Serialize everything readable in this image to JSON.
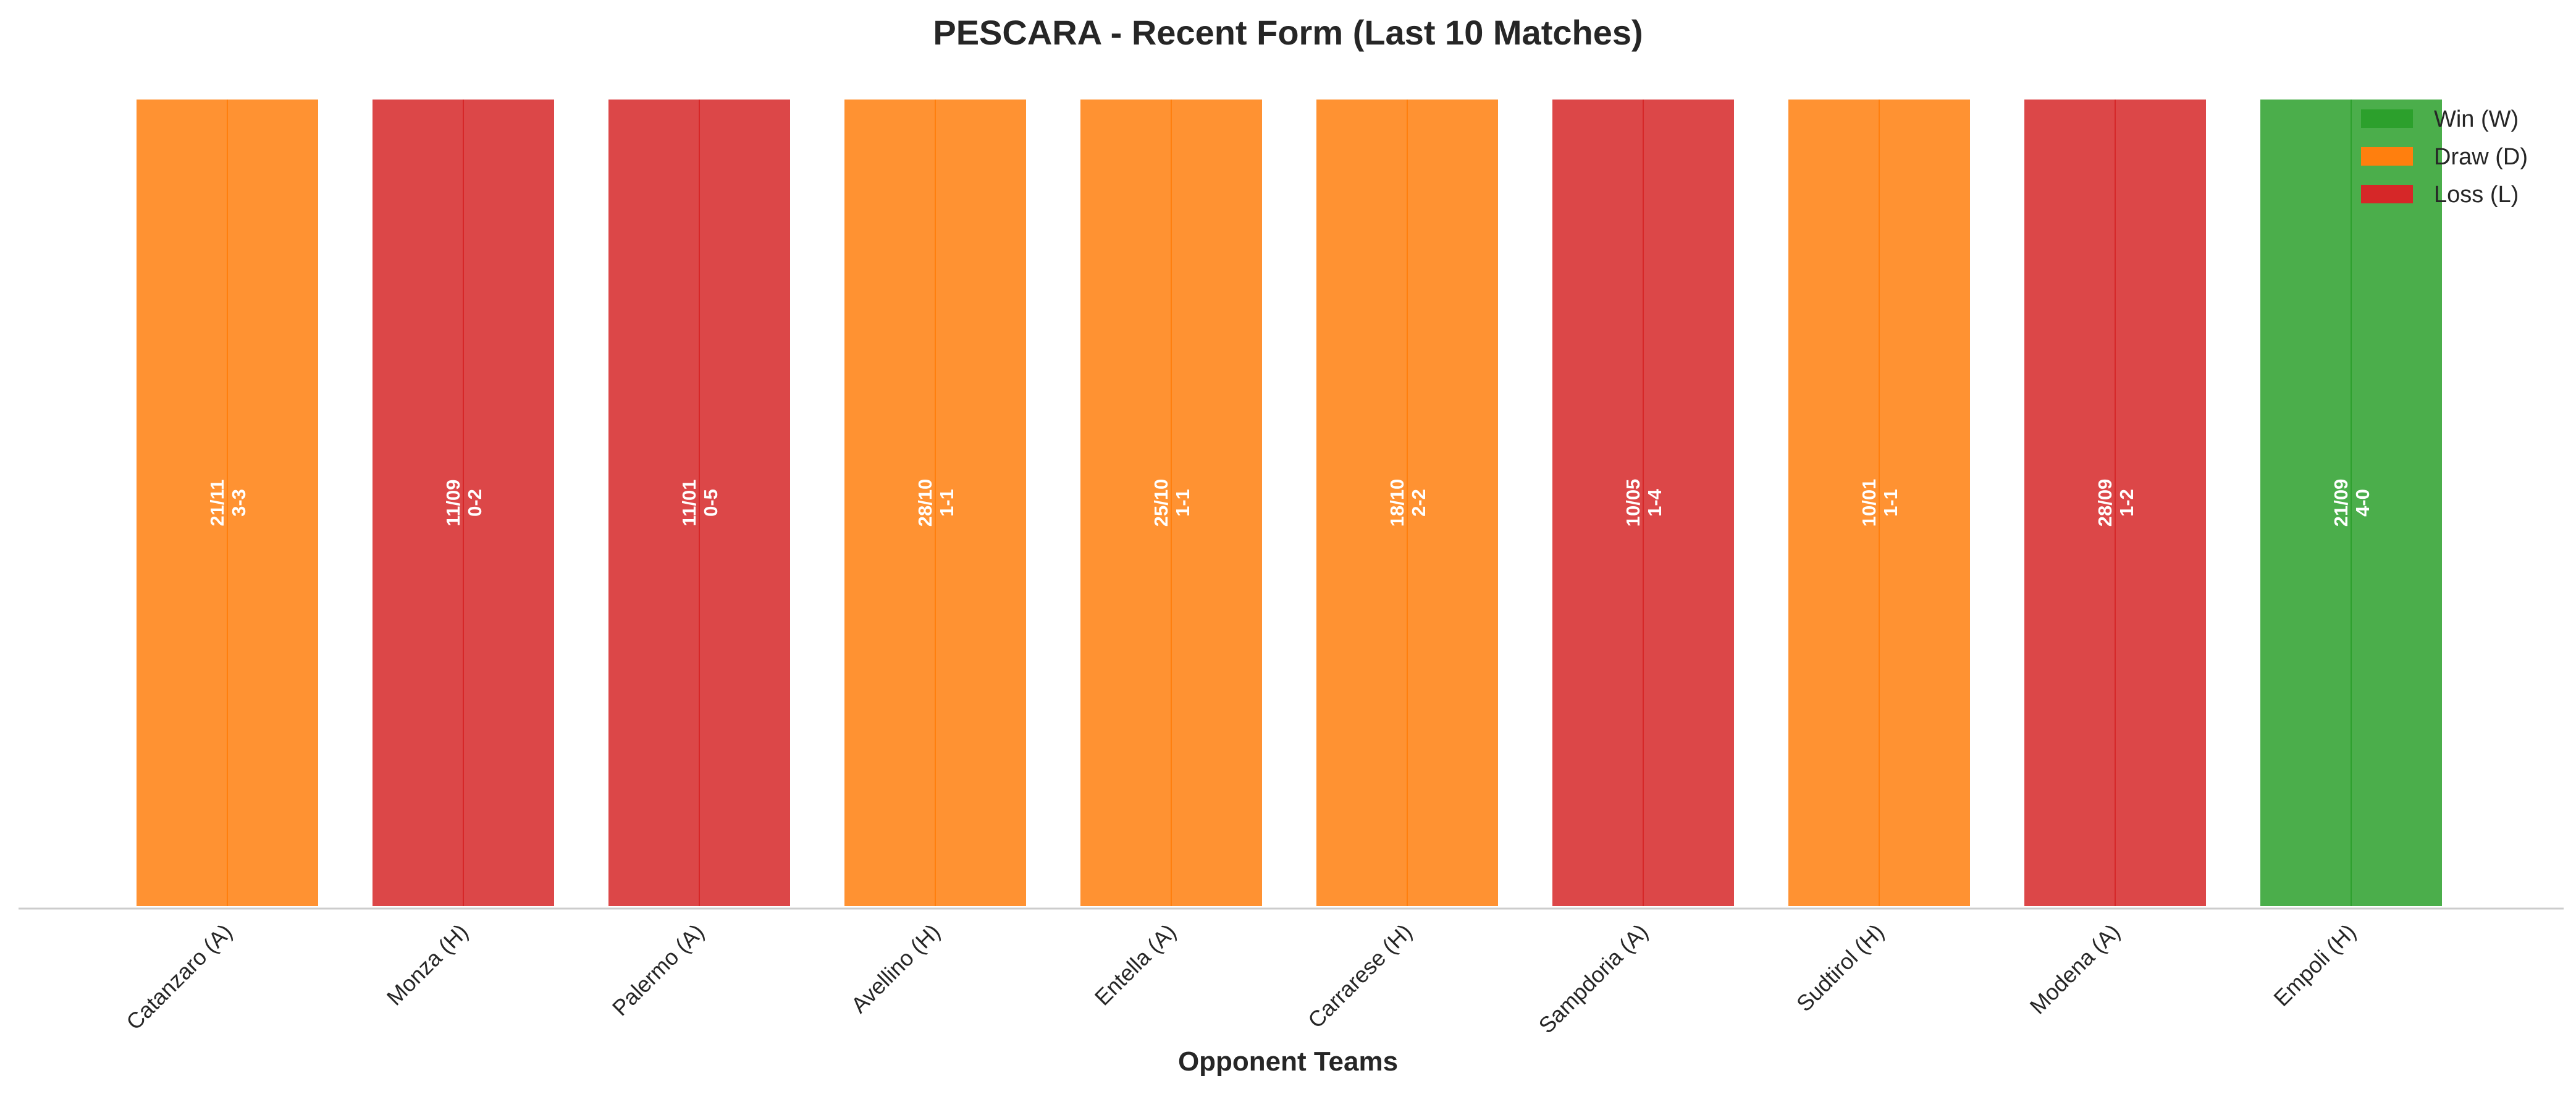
{
  "chart_data": {
    "type": "bar",
    "title": "PESCARA - Recent Form (Last 10 Matches)",
    "xlabel": "Opponent Teams",
    "ylabel": "",
    "grid": false,
    "legend_position": "top-right",
    "categories": [
      "Catanzaro (A)",
      "Monza (H)",
      "Palermo (A)",
      "Avellino (H)",
      "Entella (A)",
      "Carrarese (H)",
      "Sampdoria (A)",
      "Sudtirol (H)",
      "Modena (A)",
      "Empoli (H)"
    ],
    "values": [
      1,
      1,
      1,
      1,
      1,
      1,
      1,
      1,
      1,
      1
    ],
    "results": [
      "D",
      "L",
      "L",
      "D",
      "D",
      "D",
      "L",
      "D",
      "L",
      "W"
    ],
    "dates": [
      "21/11",
      "11/09",
      "11/01",
      "28/10",
      "25/10",
      "18/10",
      "10/05",
      "10/01",
      "28/09",
      "21/09"
    ],
    "scores": [
      "3-3",
      "0-2",
      "0-5",
      "1-1",
      "1-1",
      "2-2",
      "1-4",
      "1-1",
      "1-2",
      "4-0"
    ],
    "legend": [
      {
        "key": "W",
        "label": "Win (W)",
        "color": "#2ca02c"
      },
      {
        "key": "D",
        "label": "Draw (D)",
        "color": "#ff7f0e"
      },
      {
        "key": "L",
        "label": "Loss (L)",
        "color": "#d62728"
      }
    ],
    "bar_alpha": 0.85
  }
}
